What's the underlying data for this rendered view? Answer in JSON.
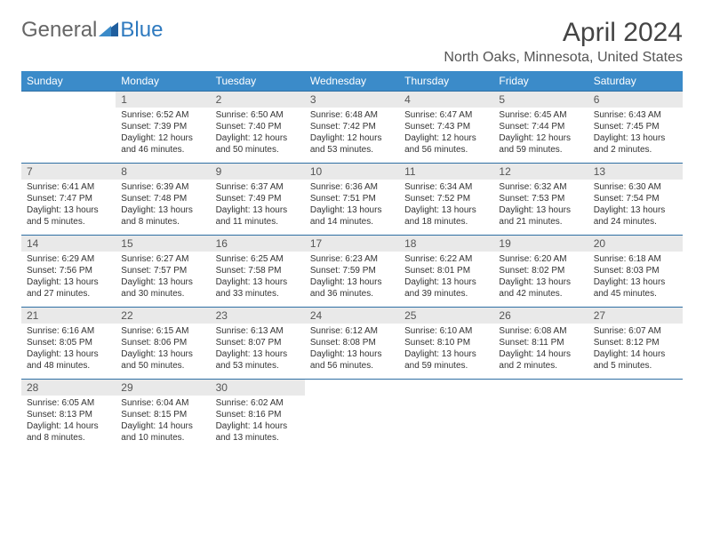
{
  "brand": {
    "part1": "General",
    "part2": "Blue"
  },
  "title": "April 2024",
  "location": "North Oaks, Minnesota, United States",
  "colors": {
    "header_bg": "#3b8bc9",
    "header_text": "#ffffff",
    "day_bg": "#e9e9e9",
    "rule": "#2f6fa3",
    "text": "#333333",
    "title_text": "#444444",
    "brand_gray": "#666666",
    "brand_blue": "#2f7abf"
  },
  "weekdays": [
    "Sunday",
    "Monday",
    "Tuesday",
    "Wednesday",
    "Thursday",
    "Friday",
    "Saturday"
  ],
  "weeks": [
    [
      {
        "n": "",
        "sunrise": "",
        "sunset": "",
        "daylight": ""
      },
      {
        "n": "1",
        "sunrise": "Sunrise: 6:52 AM",
        "sunset": "Sunset: 7:39 PM",
        "daylight": "Daylight: 12 hours and 46 minutes."
      },
      {
        "n": "2",
        "sunrise": "Sunrise: 6:50 AM",
        "sunset": "Sunset: 7:40 PM",
        "daylight": "Daylight: 12 hours and 50 minutes."
      },
      {
        "n": "3",
        "sunrise": "Sunrise: 6:48 AM",
        "sunset": "Sunset: 7:42 PM",
        "daylight": "Daylight: 12 hours and 53 minutes."
      },
      {
        "n": "4",
        "sunrise": "Sunrise: 6:47 AM",
        "sunset": "Sunset: 7:43 PM",
        "daylight": "Daylight: 12 hours and 56 minutes."
      },
      {
        "n": "5",
        "sunrise": "Sunrise: 6:45 AM",
        "sunset": "Sunset: 7:44 PM",
        "daylight": "Daylight: 12 hours and 59 minutes."
      },
      {
        "n": "6",
        "sunrise": "Sunrise: 6:43 AM",
        "sunset": "Sunset: 7:45 PM",
        "daylight": "Daylight: 13 hours and 2 minutes."
      }
    ],
    [
      {
        "n": "7",
        "sunrise": "Sunrise: 6:41 AM",
        "sunset": "Sunset: 7:47 PM",
        "daylight": "Daylight: 13 hours and 5 minutes."
      },
      {
        "n": "8",
        "sunrise": "Sunrise: 6:39 AM",
        "sunset": "Sunset: 7:48 PM",
        "daylight": "Daylight: 13 hours and 8 minutes."
      },
      {
        "n": "9",
        "sunrise": "Sunrise: 6:37 AM",
        "sunset": "Sunset: 7:49 PM",
        "daylight": "Daylight: 13 hours and 11 minutes."
      },
      {
        "n": "10",
        "sunrise": "Sunrise: 6:36 AM",
        "sunset": "Sunset: 7:51 PM",
        "daylight": "Daylight: 13 hours and 14 minutes."
      },
      {
        "n": "11",
        "sunrise": "Sunrise: 6:34 AM",
        "sunset": "Sunset: 7:52 PM",
        "daylight": "Daylight: 13 hours and 18 minutes."
      },
      {
        "n": "12",
        "sunrise": "Sunrise: 6:32 AM",
        "sunset": "Sunset: 7:53 PM",
        "daylight": "Daylight: 13 hours and 21 minutes."
      },
      {
        "n": "13",
        "sunrise": "Sunrise: 6:30 AM",
        "sunset": "Sunset: 7:54 PM",
        "daylight": "Daylight: 13 hours and 24 minutes."
      }
    ],
    [
      {
        "n": "14",
        "sunrise": "Sunrise: 6:29 AM",
        "sunset": "Sunset: 7:56 PM",
        "daylight": "Daylight: 13 hours and 27 minutes."
      },
      {
        "n": "15",
        "sunrise": "Sunrise: 6:27 AM",
        "sunset": "Sunset: 7:57 PM",
        "daylight": "Daylight: 13 hours and 30 minutes."
      },
      {
        "n": "16",
        "sunrise": "Sunrise: 6:25 AM",
        "sunset": "Sunset: 7:58 PM",
        "daylight": "Daylight: 13 hours and 33 minutes."
      },
      {
        "n": "17",
        "sunrise": "Sunrise: 6:23 AM",
        "sunset": "Sunset: 7:59 PM",
        "daylight": "Daylight: 13 hours and 36 minutes."
      },
      {
        "n": "18",
        "sunrise": "Sunrise: 6:22 AM",
        "sunset": "Sunset: 8:01 PM",
        "daylight": "Daylight: 13 hours and 39 minutes."
      },
      {
        "n": "19",
        "sunrise": "Sunrise: 6:20 AM",
        "sunset": "Sunset: 8:02 PM",
        "daylight": "Daylight: 13 hours and 42 minutes."
      },
      {
        "n": "20",
        "sunrise": "Sunrise: 6:18 AM",
        "sunset": "Sunset: 8:03 PM",
        "daylight": "Daylight: 13 hours and 45 minutes."
      }
    ],
    [
      {
        "n": "21",
        "sunrise": "Sunrise: 6:16 AM",
        "sunset": "Sunset: 8:05 PM",
        "daylight": "Daylight: 13 hours and 48 minutes."
      },
      {
        "n": "22",
        "sunrise": "Sunrise: 6:15 AM",
        "sunset": "Sunset: 8:06 PM",
        "daylight": "Daylight: 13 hours and 50 minutes."
      },
      {
        "n": "23",
        "sunrise": "Sunrise: 6:13 AM",
        "sunset": "Sunset: 8:07 PM",
        "daylight": "Daylight: 13 hours and 53 minutes."
      },
      {
        "n": "24",
        "sunrise": "Sunrise: 6:12 AM",
        "sunset": "Sunset: 8:08 PM",
        "daylight": "Daylight: 13 hours and 56 minutes."
      },
      {
        "n": "25",
        "sunrise": "Sunrise: 6:10 AM",
        "sunset": "Sunset: 8:10 PM",
        "daylight": "Daylight: 13 hours and 59 minutes."
      },
      {
        "n": "26",
        "sunrise": "Sunrise: 6:08 AM",
        "sunset": "Sunset: 8:11 PM",
        "daylight": "Daylight: 14 hours and 2 minutes."
      },
      {
        "n": "27",
        "sunrise": "Sunrise: 6:07 AM",
        "sunset": "Sunset: 8:12 PM",
        "daylight": "Daylight: 14 hours and 5 minutes."
      }
    ],
    [
      {
        "n": "28",
        "sunrise": "Sunrise: 6:05 AM",
        "sunset": "Sunset: 8:13 PM",
        "daylight": "Daylight: 14 hours and 8 minutes."
      },
      {
        "n": "29",
        "sunrise": "Sunrise: 6:04 AM",
        "sunset": "Sunset: 8:15 PM",
        "daylight": "Daylight: 14 hours and 10 minutes."
      },
      {
        "n": "30",
        "sunrise": "Sunrise: 6:02 AM",
        "sunset": "Sunset: 8:16 PM",
        "daylight": "Daylight: 14 hours and 13 minutes."
      },
      {
        "n": "",
        "sunrise": "",
        "sunset": "",
        "daylight": ""
      },
      {
        "n": "",
        "sunrise": "",
        "sunset": "",
        "daylight": ""
      },
      {
        "n": "",
        "sunrise": "",
        "sunset": "",
        "daylight": ""
      },
      {
        "n": "",
        "sunrise": "",
        "sunset": "",
        "daylight": ""
      }
    ]
  ]
}
